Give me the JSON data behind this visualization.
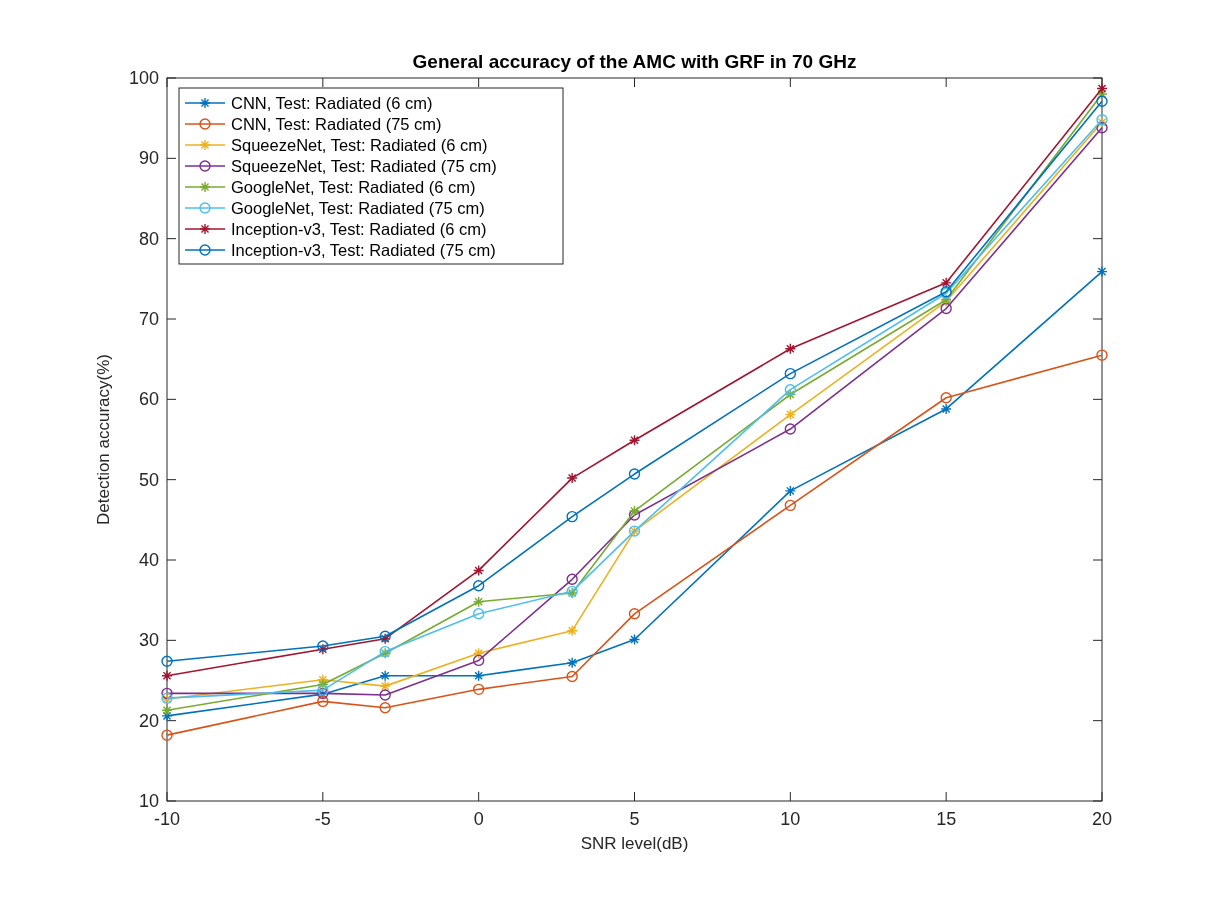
{
  "chart_data": {
    "type": "line",
    "title": "General accuracy of the AMC with GRF in 70 GHz",
    "xlabel": "SNR level(dB)",
    "ylabel": "Detection accuracy(%)",
    "x": [
      -10,
      -5,
      -3,
      0,
      3,
      5,
      10,
      15,
      20
    ],
    "xlim": [
      -10,
      20
    ],
    "xticks": [
      -10,
      -5,
      0,
      5,
      10,
      15,
      20
    ],
    "ylim": [
      10,
      100
    ],
    "yticks": [
      10,
      20,
      30,
      40,
      50,
      60,
      70,
      80,
      90,
      100
    ],
    "grid": false,
    "legend": "top left",
    "line_style": "solid",
    "series": [
      {
        "name": "CNN, Test: Radiated (6 cm)",
        "color": "#0072bd",
        "marker": "cross",
        "values": [
          20.6,
          23.3,
          25.6,
          25.6,
          27.2,
          30.1,
          48.6,
          58.8,
          75.9
        ]
      },
      {
        "name": "CNN, Test: Radiated (75 cm)",
        "color": "#d95319",
        "marker": "circle",
        "values": [
          18.2,
          22.4,
          21.6,
          23.9,
          25.5,
          33.3,
          46.8,
          60.2,
          65.5
        ]
      },
      {
        "name": "SqueezeNet, Test: Radiated (6 cm)",
        "color": "#edb120",
        "marker": "cross",
        "values": [
          22.7,
          25.1,
          24.3,
          28.4,
          31.2,
          43.6,
          58.1,
          72.2,
          94.5
        ]
      },
      {
        "name": "SqueezeNet, Test: Radiated (75 cm)",
        "color": "#7e2f8e",
        "marker": "circle",
        "values": [
          23.4,
          23.4,
          23.2,
          27.5,
          37.6,
          45.6,
          56.3,
          71.3,
          93.8
        ]
      },
      {
        "name": "GoogleNet, Test: Radiated (6 cm)",
        "color": "#77ac30",
        "marker": "cross",
        "values": [
          21.3,
          24.5,
          28.4,
          34.8,
          35.9,
          46.1,
          60.6,
          72.4,
          98.0
        ]
      },
      {
        "name": "GoogleNet, Test: Radiated (75 cm)",
        "color": "#4dbeee",
        "marker": "circle",
        "values": [
          22.8,
          23.8,
          28.6,
          33.3,
          36.1,
          43.6,
          61.2,
          73.2,
          94.8
        ]
      },
      {
        "name": "Inception-v3, Test: Radiated (6 cm)",
        "color": "#a2142f",
        "marker": "cross",
        "values": [
          25.6,
          28.9,
          30.2,
          38.7,
          50.2,
          54.9,
          66.3,
          74.5,
          98.7
        ]
      },
      {
        "name": "Inception-v3, Test: Radiated (75 cm)",
        "color": "#0072bd",
        "marker": "circle",
        "values": [
          27.4,
          29.3,
          30.5,
          36.8,
          45.4,
          50.7,
          63.2,
          73.4,
          97.1
        ]
      }
    ]
  }
}
